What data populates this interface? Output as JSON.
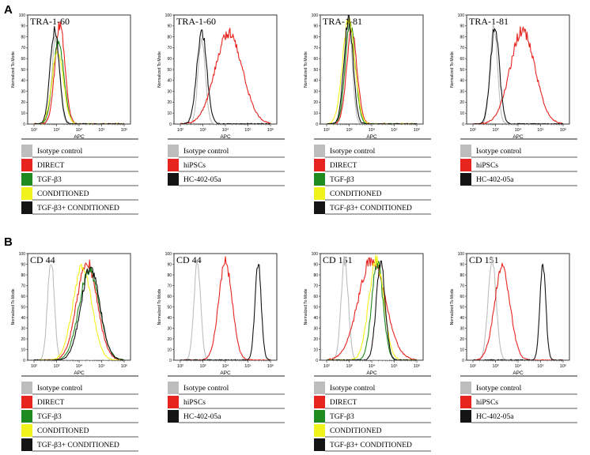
{
  "panels": [
    {
      "label": "A"
    },
    {
      "label": "B"
    }
  ],
  "legends": {
    "treatments": {
      "entries": [
        {
          "label": "Isotype control",
          "color": "#bdbdbd"
        },
        {
          "label": "DIRECT",
          "color": "#e8241f"
        },
        {
          "label": "TGF-β3",
          "color": "#1f8a1f"
        },
        {
          "label": "CONDITIONED",
          "color": "#f2f21c"
        },
        {
          "label": "TGF-β3+ CONDITIONED",
          "color": "#141414"
        }
      ]
    },
    "cells": {
      "entries": [
        {
          "label": "Isotype control",
          "color": "#bdbdbd"
        },
        {
          "label": "hiPSCs",
          "color": "#e8241f"
        },
        {
          "label": "HC-402-05a",
          "color": "#141414"
        }
      ]
    }
  },
  "chart_data": [
    {
      "type": "line",
      "title": "TRA-1-60",
      "panel": "A",
      "legend": "treatments",
      "xlabel": "APC",
      "ylabel": "Normalized To Mode",
      "xscale": "log",
      "xlim": [
        100,
        1000000
      ],
      "ylim": [
        0,
        100
      ],
      "xticks": [
        "10²",
        "10³",
        "10⁴",
        "10⁵",
        "10⁶"
      ],
      "yticks": [
        "0",
        "10",
        "20",
        "30",
        "40",
        "50",
        "60",
        "70",
        "80",
        "90",
        "100"
      ],
      "series": [
        {
          "name": "Isotype control",
          "color": "#bdbdbd",
          "mu": 2.97,
          "sigma": 0.17,
          "peak": 78
        },
        {
          "name": "DIRECT",
          "color": "#e8241f",
          "mu": 3.15,
          "sigma": 0.22,
          "peak": 90
        },
        {
          "name": "TGF-β3",
          "color": "#1f8a1f",
          "mu": 3.08,
          "sigma": 0.24,
          "peak": 76
        },
        {
          "name": "CONDITIONED",
          "color": "#f2f21c",
          "mu": 3.05,
          "sigma": 0.25,
          "peak": 68
        },
        {
          "name": "TGF-β3+ CONDITIONED",
          "color": "#141414",
          "mu": 2.92,
          "sigma": 0.2,
          "peak": 88
        }
      ]
    },
    {
      "type": "line",
      "title": "TRA-1-60",
      "panel": "A",
      "legend": "cells",
      "xlabel": "APC",
      "ylabel": "Normalized To Mode",
      "xscale": "log",
      "xlim": [
        100,
        1000000
      ],
      "ylim": [
        0,
        100
      ],
      "xticks": [
        "10²",
        "10³",
        "10⁴",
        "10⁵",
        "10⁶"
      ],
      "yticks": [
        "0",
        "10",
        "20",
        "30",
        "40",
        "50",
        "60",
        "70",
        "80",
        "90",
        "100"
      ],
      "series": [
        {
          "name": "Isotype control",
          "color": "#bdbdbd",
          "mu": 2.95,
          "sigma": 0.16,
          "peak": 80
        },
        {
          "name": "hiPSCs",
          "color": "#e8241f",
          "mu": 4.15,
          "sigma": 0.6,
          "peak": 84
        },
        {
          "name": "HC-402-05a",
          "color": "#141414",
          "mu": 2.95,
          "sigma": 0.22,
          "peak": 86
        }
      ]
    },
    {
      "type": "line",
      "title": "TRA-1-81",
      "panel": "A",
      "legend": "treatments",
      "xlabel": "APC",
      "ylabel": "Normalized To Mode",
      "xscale": "log",
      "xlim": [
        100,
        1000000
      ],
      "ylim": [
        0,
        100
      ],
      "xticks": [
        "10²",
        "10³",
        "10⁴",
        "10⁵",
        "10⁶"
      ],
      "yticks": [
        "0",
        "10",
        "20",
        "30",
        "40",
        "50",
        "60",
        "70",
        "80",
        "90",
        "100"
      ],
      "series": [
        {
          "name": "Isotype control",
          "color": "#bdbdbd",
          "mu": 2.97,
          "sigma": 0.17,
          "peak": 90
        },
        {
          "name": "DIRECT",
          "color": "#e8241f",
          "mu": 3.12,
          "sigma": 0.23,
          "peak": 86
        },
        {
          "name": "TGF-β3",
          "color": "#1f8a1f",
          "mu": 3.05,
          "sigma": 0.22,
          "peak": 92
        },
        {
          "name": "CONDITIONED",
          "color": "#f2f21c",
          "mu": 2.98,
          "sigma": 0.27,
          "peak": 95
        },
        {
          "name": "TGF-β3+ CONDITIONED",
          "color": "#141414",
          "mu": 2.97,
          "sigma": 0.2,
          "peak": 97
        }
      ]
    },
    {
      "type": "line",
      "title": "TRA-1-81",
      "panel": "A",
      "legend": "cells",
      "xlabel": "APC",
      "ylabel": "Normalized To Mode",
      "xscale": "log",
      "xlim": [
        100,
        1000000
      ],
      "ylim": [
        0,
        100
      ],
      "xticks": [
        "10²",
        "10³",
        "10⁴",
        "10⁵",
        "10⁶"
      ],
      "yticks": [
        "0",
        "10",
        "20",
        "30",
        "40",
        "50",
        "60",
        "70",
        "80",
        "90",
        "100"
      ],
      "series": [
        {
          "name": "Isotype control",
          "color": "#bdbdbd",
          "mu": 2.92,
          "sigma": 0.16,
          "peak": 92
        },
        {
          "name": "hiPSCs",
          "color": "#e8241f",
          "mu": 4.2,
          "sigma": 0.55,
          "peak": 86
        },
        {
          "name": "HC-402-05a",
          "color": "#141414",
          "mu": 2.97,
          "sigma": 0.2,
          "peak": 88
        }
      ]
    },
    {
      "type": "line",
      "title": "CD 44",
      "panel": "B",
      "legend": "treatments",
      "xlabel": "APC",
      "ylabel": "Normalized To Mode",
      "xscale": "log",
      "xlim": [
        100,
        1000000
      ],
      "ylim": [
        0,
        100
      ],
      "xticks": [
        "10²",
        "10³",
        "10⁴",
        "10⁵",
        "10⁶"
      ],
      "yticks": [
        "0",
        "10",
        "20",
        "30",
        "40",
        "50",
        "60",
        "70",
        "80",
        "90",
        "100"
      ],
      "series": [
        {
          "name": "Isotype control",
          "color": "#bdbdbd",
          "mu": 2.75,
          "sigma": 0.15,
          "peak": 94
        },
        {
          "name": "DIRECT",
          "color": "#e8241f",
          "mu": 4.35,
          "sigma": 0.45,
          "peak": 92
        },
        {
          "name": "TGF-β3",
          "color": "#1f8a1f",
          "mu": 4.45,
          "sigma": 0.45,
          "peak": 84
        },
        {
          "name": "CONDITIONED",
          "color": "#f2f21c",
          "mu": 4.15,
          "sigma": 0.42,
          "peak": 88
        },
        {
          "name": "TGF-β3+ CONDITIONED",
          "color": "#141414",
          "mu": 4.5,
          "sigma": 0.42,
          "peak": 86
        }
      ]
    },
    {
      "type": "line",
      "title": "CD 44",
      "panel": "B",
      "legend": "cells",
      "xlabel": "APC",
      "ylabel": "Normalized To Mode",
      "xscale": "log",
      "xlim": [
        100,
        1000000
      ],
      "ylim": [
        0,
        100
      ],
      "xticks": [
        "10²",
        "10³",
        "10⁴",
        "10⁵",
        "10⁶"
      ],
      "yticks": [
        "0",
        "10",
        "20",
        "30",
        "40",
        "50",
        "60",
        "70",
        "80",
        "90",
        "100"
      ],
      "series": [
        {
          "name": "Isotype control",
          "color": "#bdbdbd",
          "mu": 2.75,
          "sigma": 0.15,
          "peak": 90
        },
        {
          "name": "hiPSCs",
          "color": "#e8241f",
          "mu": 4.0,
          "sigma": 0.3,
          "peak": 92
        },
        {
          "name": "HC-402-05a",
          "color": "#141414",
          "mu": 5.45,
          "sigma": 0.14,
          "peak": 90
        }
      ]
    },
    {
      "type": "line",
      "title": "CD 151",
      "panel": "B",
      "legend": "treatments",
      "xlabel": "APC",
      "ylabel": "Normalized To Mode",
      "xscale": "log",
      "xlim": [
        100,
        1000000
      ],
      "ylim": [
        0,
        100
      ],
      "xticks": [
        "10²",
        "10³",
        "10⁴",
        "10⁵",
        "10⁶"
      ],
      "yticks": [
        "0",
        "10",
        "20",
        "30",
        "40",
        "50",
        "60",
        "70",
        "80",
        "90",
        "100"
      ],
      "series": [
        {
          "name": "Isotype control",
          "color": "#bdbdbd",
          "mu": 2.8,
          "sigma": 0.16,
          "peak": 94
        },
        {
          "name": "DIRECT",
          "color": "#e8241f",
          "mu": 4.0,
          "sigma": 0.6,
          "peak": 94
        },
        {
          "name": "TGF-β3",
          "color": "#1f8a1f",
          "mu": 4.25,
          "sigma": 0.25,
          "peak": 92
        },
        {
          "name": "CONDITIONED",
          "color": "#f2f21c",
          "mu": 4.2,
          "sigma": 0.33,
          "peak": 94
        },
        {
          "name": "TGF-β3+ CONDITIONED",
          "color": "#141414",
          "mu": 4.4,
          "sigma": 0.2,
          "peak": 90
        }
      ]
    },
    {
      "type": "line",
      "title": "CD 151",
      "panel": "B",
      "legend": "cells",
      "xlabel": "APC",
      "ylabel": "Normalized To Mode",
      "xscale": "log",
      "xlim": [
        100,
        1000000
      ],
      "ylim": [
        0,
        100
      ],
      "xticks": [
        "10²",
        "10³",
        "10⁴",
        "10⁵",
        "10⁶"
      ],
      "yticks": [
        "0",
        "10",
        "20",
        "30",
        "40",
        "50",
        "60",
        "70",
        "80",
        "90",
        "100"
      ],
      "series": [
        {
          "name": "Isotype control",
          "color": "#bdbdbd",
          "mu": 2.85,
          "sigma": 0.18,
          "peak": 94
        },
        {
          "name": "hiPSCs",
          "color": "#e8241f",
          "mu": 3.3,
          "sigma": 0.35,
          "peak": 86
        },
        {
          "name": "HC-402-05a",
          "color": "#141414",
          "mu": 5.1,
          "sigma": 0.13,
          "peak": 90
        }
      ]
    }
  ]
}
